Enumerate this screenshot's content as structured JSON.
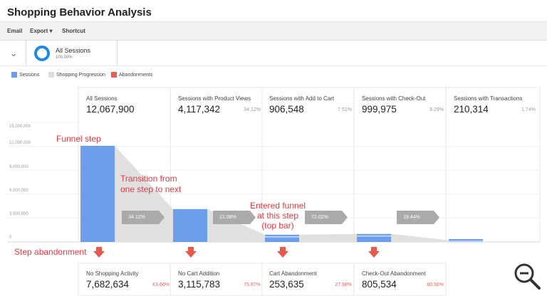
{
  "title": "Shopping Behavior Analysis",
  "toolbar": {
    "email": "Email",
    "export": "Export ▾",
    "shortcut": "Shortcut"
  },
  "segment": {
    "name": "All Sessions",
    "percent": "100.00%"
  },
  "legend": [
    {
      "label": "Sessions",
      "color": "#6d9eeb"
    },
    {
      "label": "Shopping Progression",
      "color": "#dddddd"
    },
    {
      "label": "Abandonments",
      "color": "#e06060"
    }
  ],
  "y_axis_ticks": [
    "15,000,000",
    "12,000,000",
    "9,000,000",
    "6,000,000",
    "3,000,000",
    "0"
  ],
  "colors": {
    "sessions": "#6d9eeb",
    "progression": "#e0e0e0",
    "abandon": "#e8594b",
    "annotation": "#e2383f",
    "transition": "#aaaaaa"
  },
  "stages": [
    {
      "label": "All Sessions",
      "value": "12,067,900",
      "pct": ""
    },
    {
      "label": "Sessions with Product Views",
      "value": "4,117,342",
      "pct": "34.12%"
    },
    {
      "label": "Sessions with Add to Cart",
      "value": "906,548",
      "pct": "7.51%"
    },
    {
      "label": "Sessions with Check-Out",
      "value": "999,975",
      "pct": "8.29%"
    },
    {
      "label": "Sessions with Transactions",
      "value": "210,314",
      "pct": "1.74%"
    }
  ],
  "transitions": [
    "34.12%",
    "21.08%",
    "72.02%",
    "19.44%"
  ],
  "abandonments": [
    {
      "label": "No Shopping Activity",
      "value": "7,682,634",
      "pct": "63.66%"
    },
    {
      "label": "No Cart Addition",
      "value": "3,115,783",
      "pct": "75.67%"
    },
    {
      "label": "Cart Abandonment",
      "value": "253,635",
      "pct": "27.98%"
    },
    {
      "label": "Check-Out Abandonment",
      "value": "805,534",
      "pct": "80.56%"
    }
  ],
  "annotations": {
    "funnel_step": "Funnel step",
    "transition_1": "Transition from",
    "transition_2": "one step to next",
    "entered_1": "Entered funnel",
    "entered_2": "at this step",
    "entered_3": "(top bar)",
    "step_abandonment": "Step abandonment"
  },
  "chart_data": {
    "type": "bar",
    "categories": [
      "All Sessions",
      "Sessions with Product Views",
      "Sessions with Add to Cart",
      "Sessions with Check-Out",
      "Sessions with Transactions"
    ],
    "values": [
      12067900,
      4117342,
      906548,
      999975,
      210314
    ],
    "ylim": [
      0,
      15000000
    ]
  }
}
